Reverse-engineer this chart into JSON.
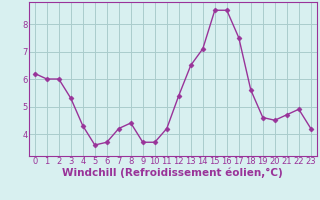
{
  "x": [
    0,
    1,
    2,
    3,
    4,
    5,
    6,
    7,
    8,
    9,
    10,
    11,
    12,
    13,
    14,
    15,
    16,
    17,
    18,
    19,
    20,
    21,
    22,
    23
  ],
  "y": [
    6.2,
    6.0,
    6.0,
    5.3,
    4.3,
    3.6,
    3.7,
    4.2,
    4.4,
    3.7,
    3.7,
    4.2,
    5.4,
    6.5,
    7.1,
    8.5,
    8.5,
    7.5,
    5.6,
    4.6,
    4.5,
    4.7,
    4.9,
    4.2
  ],
  "line_color": "#993399",
  "marker": "D",
  "marker_size": 2.5,
  "bg_color": "#d8f0f0",
  "grid_color": "#aacccc",
  "xlabel": "Windchill (Refroidissement éolien,°C)",
  "xlabel_color": "#993399",
  "xlim": [
    -0.5,
    23.5
  ],
  "ylim": [
    3.2,
    8.8
  ],
  "yticks": [
    4,
    5,
    6,
    7,
    8
  ],
  "xticks": [
    0,
    1,
    2,
    3,
    4,
    5,
    6,
    7,
    8,
    9,
    10,
    11,
    12,
    13,
    14,
    15,
    16,
    17,
    18,
    19,
    20,
    21,
    22,
    23
  ],
  "tick_label_color": "#993399",
  "tick_label_size": 6,
  "xlabel_size": 7.5,
  "spine_color": "#993399",
  "line_width": 1.0
}
